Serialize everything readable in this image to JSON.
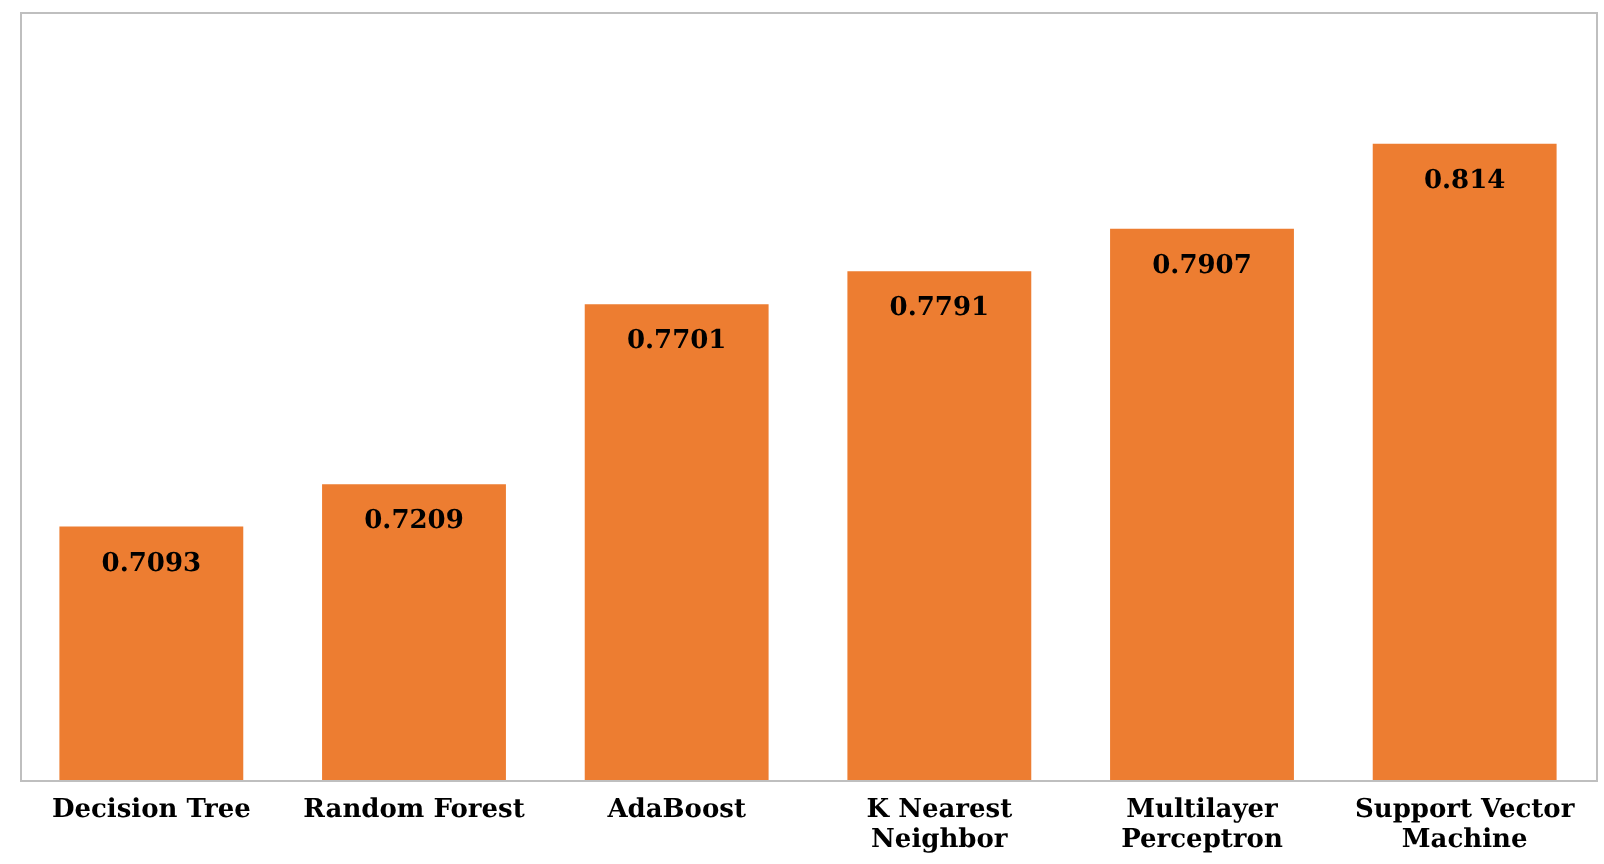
{
  "chart_data": {
    "type": "bar",
    "categories": [
      "Decision Tree",
      "Random Forest",
      "AdaBoost",
      "K Nearest Neighbor",
      "Multilayer Perceptron",
      "Support Vector Machine"
    ],
    "values": [
      0.7093,
      0.7209,
      0.7701,
      0.7791,
      0.7907,
      0.814
    ],
    "color": "#ed7d31",
    "ylim": [
      0.64,
      0.85
    ],
    "tick_labels": "x",
    "data_labels": true
  }
}
